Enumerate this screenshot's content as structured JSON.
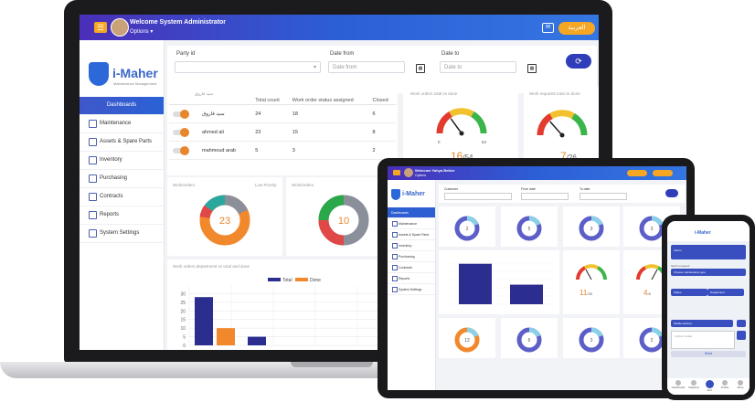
{
  "laptop": {
    "topbar": {
      "menu_icon": "menu-icon",
      "welcome": "Welcome System Administrator",
      "options": "Options ▾",
      "lang_button": "العربية"
    },
    "brand": {
      "name": "i-Maher",
      "tagline": "Maintenance Management"
    },
    "sidebar": [
      {
        "label": "Dashboards",
        "icon": "",
        "active": true
      },
      {
        "label": "Maintenance",
        "icon": "wrench-icon"
      },
      {
        "label": "Assets & Spare Parts",
        "icon": "box-icon"
      },
      {
        "label": "Inventory",
        "icon": "inventory-icon"
      },
      {
        "label": "Purchasing",
        "icon": "cart-icon"
      },
      {
        "label": "Contracts",
        "icon": "document-icon"
      },
      {
        "label": "Reports",
        "icon": "chart-icon"
      },
      {
        "label": "System Settings",
        "icon": "gear-icon"
      }
    ],
    "filters": {
      "party_label": "Party id",
      "date_from_label": "Date from",
      "date_from_placeholder": "Date from",
      "date_to_label": "Date to",
      "date_to_placeholder": "Date to"
    },
    "wo_table": {
      "title": "سيد فاروق",
      "headers": [
        "",
        "Total count",
        "Work order status assigned",
        "Closed"
      ],
      "rows": [
        {
          "name": "سيد فاروق",
          "total": "24",
          "assigned": "18",
          "closed": "6"
        },
        {
          "name": "ahmed ali",
          "total": "23",
          "assigned": "15",
          "closed": "8"
        },
        {
          "name": "mahmoud arab",
          "total": "5",
          "assigned": "3",
          "closed": "2"
        }
      ]
    },
    "gauges": [
      {
        "title": "Work orders total vs done",
        "min": "0",
        "max": "54",
        "value": "16",
        "total": "/54",
        "fraction": 0.3
      },
      {
        "title": "Work requests total vs done",
        "value": "7",
        "total": "/26",
        "fraction": 0.27
      }
    ],
    "donuts": [
      {
        "title": "WorkOrders",
        "subtitle": "Low Priority",
        "center": "23"
      },
      {
        "title": "WorkOrders",
        "subtitle": "Medi",
        "center": "10"
      }
    ],
    "bar_chart_title": "Work orders department vs total and done",
    "chart_data": {
      "type": "bar",
      "categories": [
        "A",
        "B"
      ],
      "series": [
        {
          "name": "Total",
          "values": [
            28,
            5
          ]
        },
        {
          "name": "Done",
          "values": [
            10,
            0
          ]
        }
      ],
      "ylim": [
        0,
        35
      ],
      "yticks": [
        0,
        5,
        10,
        15,
        20,
        25,
        30
      ],
      "colors": [
        "#2b2d8f",
        "#f2882c"
      ],
      "legend": "top-center",
      "grid": true
    }
  },
  "tablet": {
    "welcome": "Welcome Yahya Bekler",
    "options": "Options",
    "brand": "i-Maher",
    "sidebar": [
      {
        "label": "Dashboards",
        "active": true
      },
      {
        "label": "Maintenance"
      },
      {
        "label": "Assets & Spare Parts"
      },
      {
        "label": "Inventory"
      },
      {
        "label": "Purchasing"
      },
      {
        "label": "Contracts"
      },
      {
        "label": "Reports"
      },
      {
        "label": "System Settings"
      }
    ],
    "filter_labels": [
      "Customer",
      "From date",
      "To date"
    ],
    "gauges": [
      {
        "value": "11",
        "total": "/38"
      },
      {
        "value": "4",
        "total": "/8"
      }
    ],
    "bar_values": [
      62,
      30
    ],
    "donut_centers": [
      "2",
      "5",
      "3",
      "3",
      "12",
      "6",
      "3",
      "2"
    ]
  },
  "phone": {
    "heading": "i-Maher",
    "user": "Admin",
    "menu_label": "Send a request",
    "rows": [
      "Choose maintenance type",
      "Status",
      "Department",
      "Mobile devices"
    ],
    "textarea": "Further details",
    "send_label": "Send",
    "bottom_nav": [
      "Dashboard",
      "Statistics",
      "Add",
      "Profile",
      "More"
    ]
  }
}
